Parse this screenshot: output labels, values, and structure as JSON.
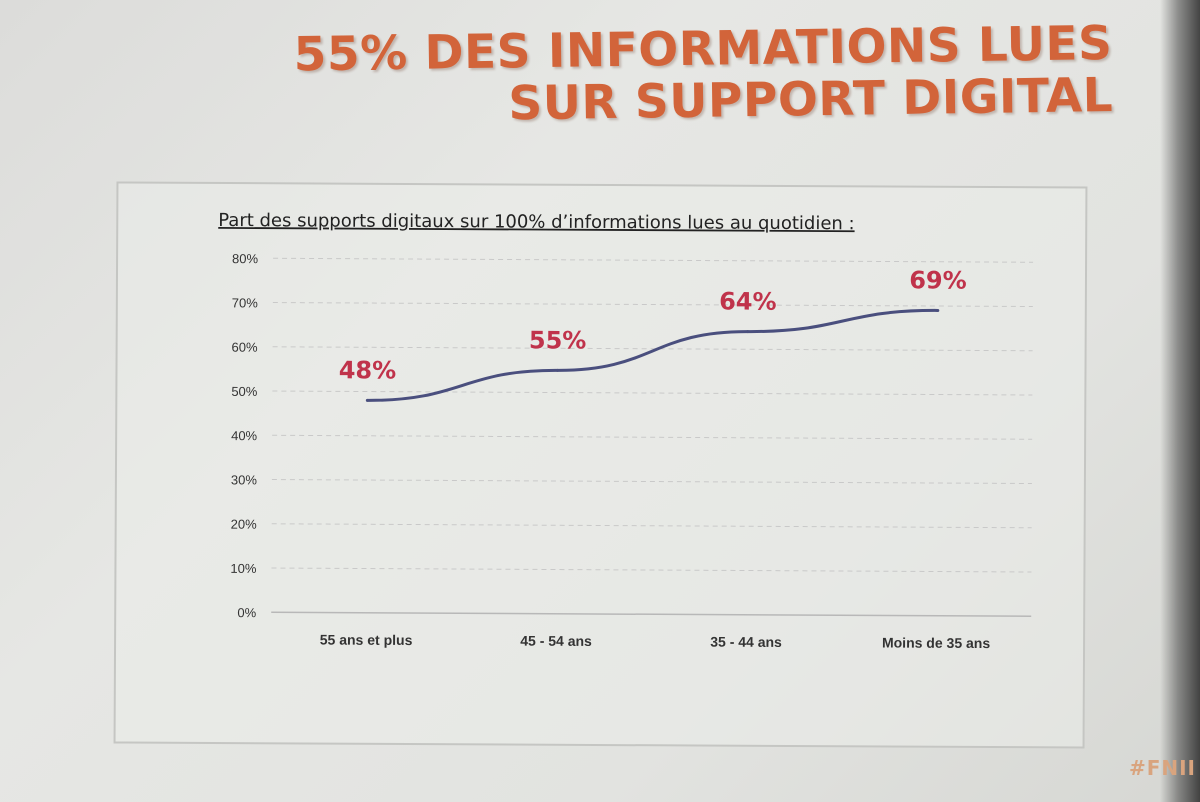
{
  "slide": {
    "title_line1": "55% DES INFORMATIONS LUES",
    "title_line2": "SUR SUPPORT DIGITAL",
    "hashtag": "#FNII",
    "title_color": "#d2643a"
  },
  "chart_data": {
    "type": "line",
    "title": "Part des supports digitaux sur 100% d’informations lues au quotidien :",
    "xlabel": "",
    "ylabel": "",
    "categories": [
      "55 ans et plus",
      "45 - 54 ans",
      "35 - 44 ans",
      "Moins de 35 ans"
    ],
    "series": [
      {
        "values": [
          48,
          55,
          64,
          69
        ],
        "labels": [
          "48%",
          "55%",
          "64%",
          "69%"
        ]
      }
    ],
    "ylim": [
      0,
      80
    ],
    "yticks": [
      "0%",
      "10%",
      "20%",
      "30%",
      "40%",
      "50%",
      "60%",
      "70%",
      "80%"
    ],
    "grid": true,
    "legend": "none",
    "line_color": "#4a4f7e",
    "label_color": "#c0334b"
  }
}
